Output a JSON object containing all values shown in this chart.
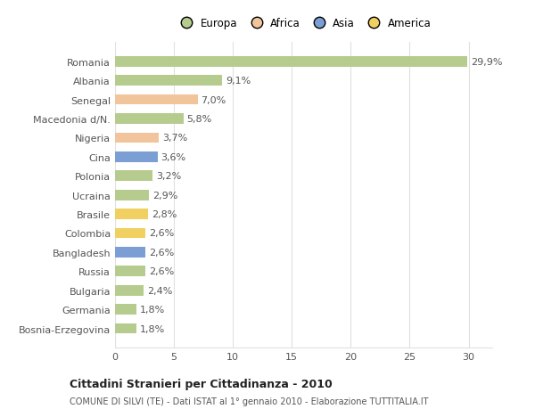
{
  "categories": [
    "Romania",
    "Albania",
    "Senegal",
    "Macedonia d/N.",
    "Nigeria",
    "Cina",
    "Polonia",
    "Ucraina",
    "Brasile",
    "Colombia",
    "Bangladesh",
    "Russia",
    "Bulgaria",
    "Germania",
    "Bosnia-Erzegovina"
  ],
  "values": [
    29.9,
    9.1,
    7.0,
    5.8,
    3.7,
    3.6,
    3.2,
    2.9,
    2.8,
    2.6,
    2.6,
    2.6,
    2.4,
    1.8,
    1.8
  ],
  "labels": [
    "29,9%",
    "9,1%",
    "7,0%",
    "5,8%",
    "3,7%",
    "3,6%",
    "3,2%",
    "2,9%",
    "2,8%",
    "2,6%",
    "2,6%",
    "2,6%",
    "2,4%",
    "1,8%",
    "1,8%"
  ],
  "colors": [
    "#b5cc8e",
    "#b5cc8e",
    "#f2c49b",
    "#b5cc8e",
    "#f2c49b",
    "#7b9fd4",
    "#b5cc8e",
    "#b5cc8e",
    "#f0d060",
    "#f0d060",
    "#7b9fd4",
    "#b5cc8e",
    "#b5cc8e",
    "#b5cc8e",
    "#b5cc8e"
  ],
  "legend_labels": [
    "Europa",
    "Africa",
    "Asia",
    "America"
  ],
  "legend_colors": [
    "#b5cc8e",
    "#f2c49b",
    "#7b9fd4",
    "#f0d060"
  ],
  "title": "Cittadini Stranieri per Cittadinanza - 2010",
  "subtitle": "COMUNE DI SILVI (TE) - Dati ISTAT al 1° gennaio 2010 - Elaborazione TUTTITALIA.IT",
  "xlim": [
    0,
    32
  ],
  "xticks": [
    0,
    5,
    10,
    15,
    20,
    25,
    30
  ],
  "bg_color": "#ffffff",
  "grid_color": "#e0e0e0",
  "label_fontsize": 8,
  "tick_fontsize": 8,
  "bar_height": 0.55
}
